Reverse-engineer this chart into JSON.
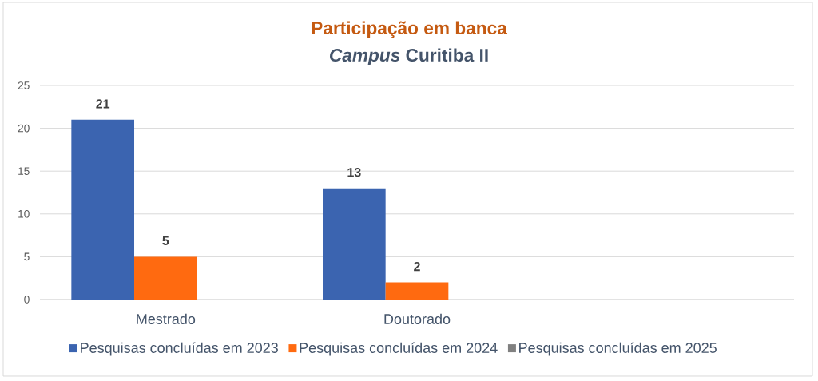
{
  "chart_data": {
    "type": "bar",
    "title": "Participação em banca",
    "subtitle": "*Campus* Curitiba II",
    "categories": [
      "Mestrado",
      "Doutorado",
      null
    ],
    "series": [
      {
        "name": "Pesquisas concluídas em 2023",
        "color": "#3b64b0",
        "values": [
          21,
          13,
          null
        ]
      },
      {
        "name": "Pesquisas concluídas em 2024",
        "color": "#ff6a10",
        "values": [
          5,
          2,
          null
        ]
      },
      {
        "name": "Pesquisas concluídas em 2025",
        "color": "#808080",
        "values": [
          null,
          null,
          null
        ]
      }
    ],
    "ylim": [
      0,
      25
    ],
    "yticks": [
      0,
      5,
      10,
      15,
      20,
      25
    ],
    "grid": "y",
    "legend": "bottom",
    "data_labels": true
  }
}
